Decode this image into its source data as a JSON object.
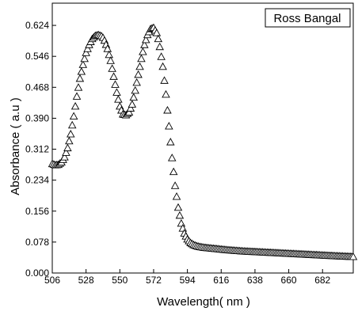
{
  "chart_data": {
    "type": "scatter",
    "title": "",
    "xlabel": "Wavelength( nm )",
    "ylabel": "Absorbance ( a.u )",
    "xlim": [
      506,
      702
    ],
    "ylim": [
      0.0,
      0.68
    ],
    "grid": false,
    "legend_position": "top-right",
    "x_ticks": [
      {
        "value": 506,
        "label": "506"
      },
      {
        "value": 528,
        "label": "528"
      },
      {
        "value": 550,
        "label": "550"
      },
      {
        "value": 572,
        "label": "572"
      },
      {
        "value": 594,
        "label": "594"
      },
      {
        "value": 616,
        "label": "616"
      },
      {
        "value": 638,
        "label": "638"
      },
      {
        "value": 660,
        "label": "660"
      },
      {
        "value": 682,
        "label": "682"
      }
    ],
    "y_ticks": [
      {
        "value": 0.0,
        "label": "0.000"
      },
      {
        "value": 0.078,
        "label": "0.078"
      },
      {
        "value": 0.156,
        "label": "0.156"
      },
      {
        "value": 0.234,
        "label": "0.234"
      },
      {
        "value": 0.312,
        "label": "0.312"
      },
      {
        "value": 0.39,
        "label": "0.390"
      },
      {
        "value": 0.468,
        "label": "0.468"
      },
      {
        "value": 0.546,
        "label": "0.546"
      },
      {
        "value": 0.624,
        "label": "0.624"
      }
    ],
    "series": [
      {
        "name": "Ross Bangal",
        "marker": "triangle-open",
        "color": "#000000",
        "x": [
          506,
          508,
          510,
          512,
          514,
          516,
          518,
          520,
          522,
          524,
          526,
          528,
          530,
          532,
          534,
          536,
          538,
          539,
          540,
          542,
          544,
          546,
          548,
          550,
          552,
          554,
          556,
          558,
          560,
          562,
          564,
          566,
          568,
          570,
          572,
          574,
          575,
          576,
          578,
          580,
          582,
          584,
          586,
          588,
          590,
          592,
          594,
          596,
          598,
          600,
          602,
          605,
          610,
          615,
          620,
          630,
          640,
          650,
          660,
          670,
          680,
          690,
          702
        ],
        "y": [
          0.275,
          0.272,
          0.273,
          0.279,
          0.292,
          0.315,
          0.35,
          0.395,
          0.445,
          0.49,
          0.525,
          0.555,
          0.575,
          0.59,
          0.598,
          0.6,
          0.597,
          0.593,
          0.586,
          0.565,
          0.535,
          0.495,
          0.455,
          0.42,
          0.4,
          0.398,
          0.405,
          0.425,
          0.46,
          0.5,
          0.54,
          0.575,
          0.6,
          0.615,
          0.618,
          0.605,
          0.59,
          0.57,
          0.52,
          0.45,
          0.37,
          0.29,
          0.22,
          0.165,
          0.125,
          0.1,
          0.085,
          0.076,
          0.071,
          0.068,
          0.066,
          0.064,
          0.062,
          0.06,
          0.058,
          0.055,
          0.053,
          0.051,
          0.049,
          0.047,
          0.045,
          0.043,
          0.041
        ]
      }
    ]
  }
}
